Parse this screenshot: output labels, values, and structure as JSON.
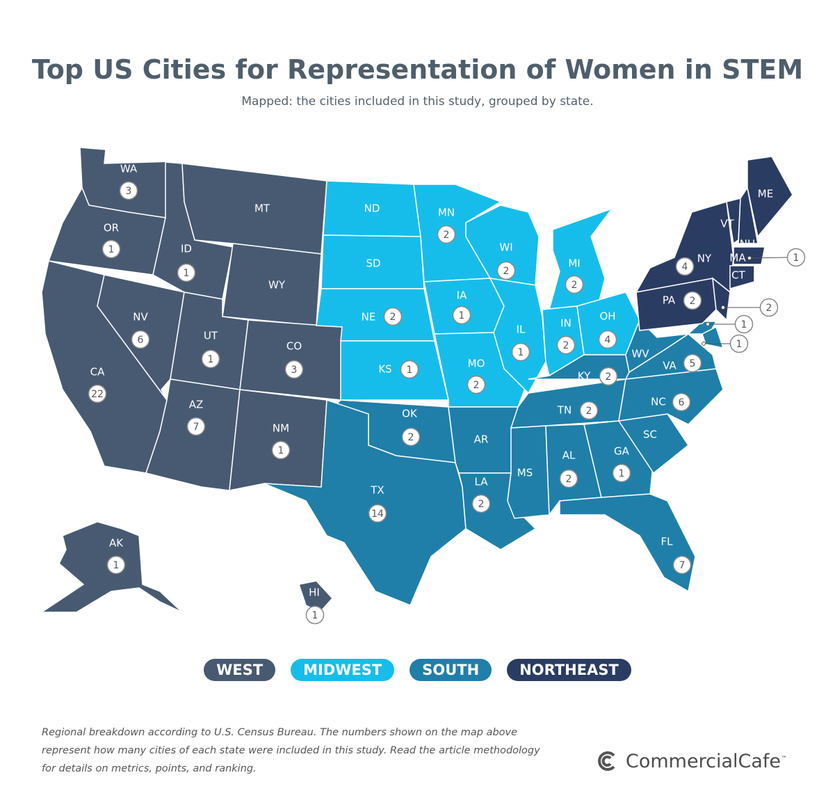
{
  "title": "Top US Cities for Representation of Women in STEM",
  "subtitle": "Mapped: the cities included in this study, grouped by state.",
  "regions": [
    {
      "name": "WEST",
      "color": "#475a72"
    },
    {
      "name": "MIDWEST",
      "color": "#17bdea"
    },
    {
      "name": "SOUTH",
      "color": "#1f7fa9"
    },
    {
      "name": "NORTHEAST",
      "color": "#2b3c63"
    }
  ],
  "states": [
    {
      "label": "WA",
      "region": "WEST",
      "count": 3
    },
    {
      "label": "OR",
      "region": "WEST",
      "count": 1
    },
    {
      "label": "CA",
      "region": "WEST",
      "count": 22
    },
    {
      "label": "NV",
      "region": "WEST",
      "count": 6
    },
    {
      "label": "ID",
      "region": "WEST",
      "count": 1
    },
    {
      "label": "MT",
      "region": "WEST",
      "count": null
    },
    {
      "label": "WY",
      "region": "WEST",
      "count": null
    },
    {
      "label": "UT",
      "region": "WEST",
      "count": 1
    },
    {
      "label": "CO",
      "region": "WEST",
      "count": 3
    },
    {
      "label": "AZ",
      "region": "WEST",
      "count": 7
    },
    {
      "label": "NM",
      "region": "WEST",
      "count": 1
    },
    {
      "label": "AK",
      "region": "WEST",
      "count": 1
    },
    {
      "label": "HI",
      "region": "WEST",
      "count": 1
    },
    {
      "label": "ND",
      "region": "MIDWEST",
      "count": null
    },
    {
      "label": "SD",
      "region": "MIDWEST",
      "count": null
    },
    {
      "label": "NE",
      "region": "MIDWEST",
      "count": 2
    },
    {
      "label": "KS",
      "region": "MIDWEST",
      "count": 1
    },
    {
      "label": "MN",
      "region": "MIDWEST",
      "count": 2
    },
    {
      "label": "IA",
      "region": "MIDWEST",
      "count": 1
    },
    {
      "label": "MO",
      "region": "MIDWEST",
      "count": 2
    },
    {
      "label": "WI",
      "region": "MIDWEST",
      "count": 2
    },
    {
      "label": "IL",
      "region": "MIDWEST",
      "count": 1
    },
    {
      "label": "MI",
      "region": "MIDWEST",
      "count": 2
    },
    {
      "label": "IN",
      "region": "MIDWEST",
      "count": 2
    },
    {
      "label": "OH",
      "region": "MIDWEST",
      "count": 4
    },
    {
      "label": "OK",
      "region": "SOUTH",
      "count": 2
    },
    {
      "label": "TX",
      "region": "SOUTH",
      "count": 14
    },
    {
      "label": "AR",
      "region": "SOUTH",
      "count": null
    },
    {
      "label": "LA",
      "region": "SOUTH",
      "count": 2
    },
    {
      "label": "MS",
      "region": "SOUTH",
      "count": null
    },
    {
      "label": "AL",
      "region": "SOUTH",
      "count": 2
    },
    {
      "label": "GA",
      "region": "SOUTH",
      "count": 1
    },
    {
      "label": "FL",
      "region": "SOUTH",
      "count": 7
    },
    {
      "label": "SC",
      "region": "SOUTH",
      "count": null
    },
    {
      "label": "TN",
      "region": "SOUTH",
      "count": 2
    },
    {
      "label": "KY",
      "region": "SOUTH",
      "count": 2
    },
    {
      "label": "NC",
      "region": "SOUTH",
      "count": 6
    },
    {
      "label": "VA",
      "region": "SOUTH",
      "count": 5
    },
    {
      "label": "WV",
      "region": "SOUTH",
      "count": null
    },
    {
      "label": null,
      "region": "SOUTH",
      "count": 1
    },
    {
      "label": null,
      "region": "SOUTH",
      "count": 1
    },
    {
      "label": "PA",
      "region": "NORTHEAST",
      "count": 2
    },
    {
      "label": "NY",
      "region": "NORTHEAST",
      "count": 4
    },
    {
      "label": null,
      "region": "NORTHEAST",
      "count": 2
    },
    {
      "label": "VT",
      "region": "NORTHEAST",
      "count": null
    },
    {
      "label": "NH",
      "region": "NORTHEAST",
      "count": null
    },
    {
      "label": "ME",
      "region": "NORTHEAST",
      "count": null
    },
    {
      "label": "MA",
      "region": "NORTHEAST",
      "count": 1
    },
    {
      "label": "CT",
      "region": "NORTHEAST",
      "count": null
    }
  ],
  "footnote": [
    "Regional breakdown according to U.S. Census Bureau. The numbers shown on the map above",
    "represent how many cities of each state were included in this study. Read the article methodology",
    "for details on metrics, points, and ranking."
  ],
  "logo": {
    "name": "CommercialCafe",
    "mark": "™"
  }
}
